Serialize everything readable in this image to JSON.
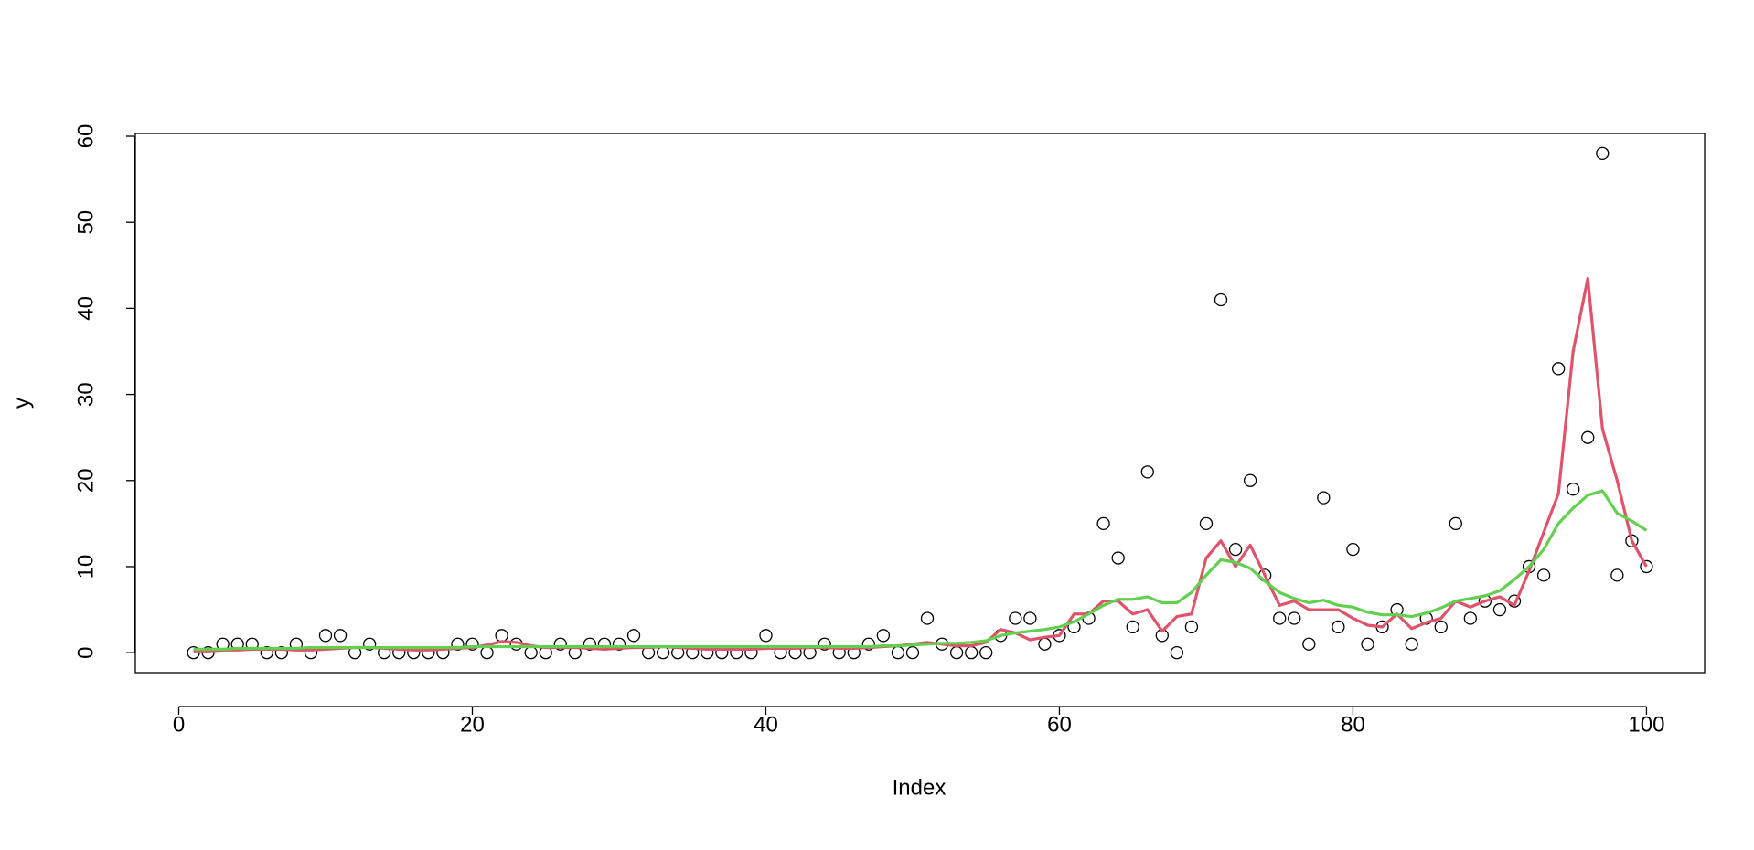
{
  "chart_data": {
    "type": "scatter",
    "x_label": "Index",
    "y_label": "y",
    "x": [
      1,
      2,
      3,
      4,
      5,
      6,
      7,
      8,
      9,
      10,
      11,
      12,
      13,
      14,
      15,
      16,
      17,
      18,
      19,
      20,
      21,
      22,
      23,
      24,
      25,
      26,
      27,
      28,
      29,
      30,
      31,
      32,
      33,
      34,
      35,
      36,
      37,
      38,
      39,
      40,
      41,
      42,
      43,
      44,
      45,
      46,
      47,
      48,
      49,
      50,
      51,
      52,
      53,
      54,
      55,
      56,
      57,
      58,
      59,
      60,
      61,
      62,
      63,
      64,
      65,
      66,
      67,
      68,
      69,
      70,
      71,
      72,
      73,
      74,
      75,
      76,
      77,
      78,
      79,
      80,
      81,
      82,
      83,
      84,
      85,
      86,
      87,
      88,
      89,
      90,
      91,
      92,
      93,
      94,
      95,
      96,
      97,
      98,
      99,
      100
    ],
    "series": [
      {
        "style": "points",
        "color": "#000000",
        "values": [
          0,
          0,
          1,
          1,
          1,
          0,
          0,
          1,
          0,
          2,
          2,
          0,
          1,
          0,
          0,
          0,
          0,
          0,
          1,
          1,
          0,
          2,
          1,
          0,
          0,
          1,
          0,
          1,
          1,
          1,
          2,
          0,
          0,
          0,
          0,
          0,
          0,
          0,
          0,
          2,
          0,
          0,
          0,
          1,
          0,
          0,
          1,
          2,
          0,
          0,
          4,
          1,
          0,
          0,
          0,
          2,
          4,
          4,
          1,
          2,
          3,
          4,
          15,
          11,
          3,
          21,
          2,
          0,
          3,
          15,
          41,
          12,
          20,
          9,
          4,
          4,
          1,
          18,
          3,
          12,
          1,
          3,
          5,
          1,
          4,
          3,
          15,
          4,
          6,
          5,
          6,
          10,
          9,
          33,
          19,
          25,
          58,
          9,
          13,
          10
        ]
      },
      {
        "style": "line",
        "color": "#DF536B",
        "values": [
          0.2,
          0.2,
          0.3,
          0.3,
          0.4,
          0.4,
          0.4,
          0.3,
          0.3,
          0.4,
          0.5,
          0.6,
          0.6,
          0.5,
          0.4,
          0.3,
          0.3,
          0.4,
          0.5,
          0.6,
          0.9,
          1.3,
          1.2,
          0.8,
          0.6,
          0.6,
          0.6,
          0.5,
          0.4,
          0.5,
          0.6,
          0.6,
          0.7,
          0.6,
          0.5,
          0.4,
          0.4,
          0.4,
          0.4,
          0.5,
          0.5,
          0.5,
          0.6,
          0.6,
          0.5,
          0.5,
          0.6,
          0.7,
          0.8,
          1.0,
          1.2,
          1.0,
          0.8,
          0.8,
          1.2,
          2.7,
          2.3,
          1.5,
          1.8,
          2.0,
          4.5,
          4.5,
          6,
          6,
          4.5,
          5,
          2.5,
          4.2,
          4.5,
          11,
          13,
          10,
          12.5,
          9,
          5.5,
          6,
          5,
          5,
          5,
          4,
          3.2,
          3,
          4.5,
          2.8,
          3.5,
          4,
          6,
          5.3,
          6,
          6.5,
          5.5,
          9.5,
          14,
          18.5,
          35,
          43.5,
          26,
          20,
          13,
          10
        ]
      },
      {
        "style": "line",
        "color": "#61D04F",
        "values": [
          0.4,
          0.4,
          0.4,
          0.5,
          0.5,
          0.5,
          0.5,
          0.5,
          0.6,
          0.6,
          0.6,
          0.6,
          0.6,
          0.6,
          0.6,
          0.6,
          0.6,
          0.6,
          0.6,
          0.7,
          0.7,
          0.7,
          0.7,
          0.7,
          0.7,
          0.7,
          0.7,
          0.7,
          0.7,
          0.7,
          0.7,
          0.7,
          0.7,
          0.7,
          0.7,
          0.7,
          0.7,
          0.7,
          0.7,
          0.7,
          0.7,
          0.7,
          0.7,
          0.7,
          0.7,
          0.7,
          0.7,
          0.8,
          0.8,
          0.9,
          1.0,
          1.1,
          1.1,
          1.2,
          1.4,
          2.0,
          2.3,
          2.5,
          2.7,
          3.0,
          3.6,
          4.5,
          5.5,
          6.2,
          6.2,
          6.5,
          5.8,
          5.8,
          7,
          9,
          10.8,
          10.5,
          9.8,
          8.3,
          7,
          6.3,
          5.8,
          6.1,
          5.5,
          5.3,
          4.7,
          4.4,
          4.4,
          4.2,
          4.6,
          5.2,
          6.0,
          6.3,
          6.6,
          7.2,
          8.5,
          10,
          12,
          15,
          16.8,
          18.3,
          18.8,
          16.2,
          15.3,
          14.2
        ]
      }
    ],
    "xlim": [
      -2.96,
      103.96
    ],
    "ylim": [
      -2.32,
      60.32
    ],
    "xticks": [
      0,
      20,
      40,
      60,
      80,
      100
    ],
    "yticks": [
      0,
      10,
      20,
      30,
      40,
      50,
      60
    ],
    "grid": false
  }
}
